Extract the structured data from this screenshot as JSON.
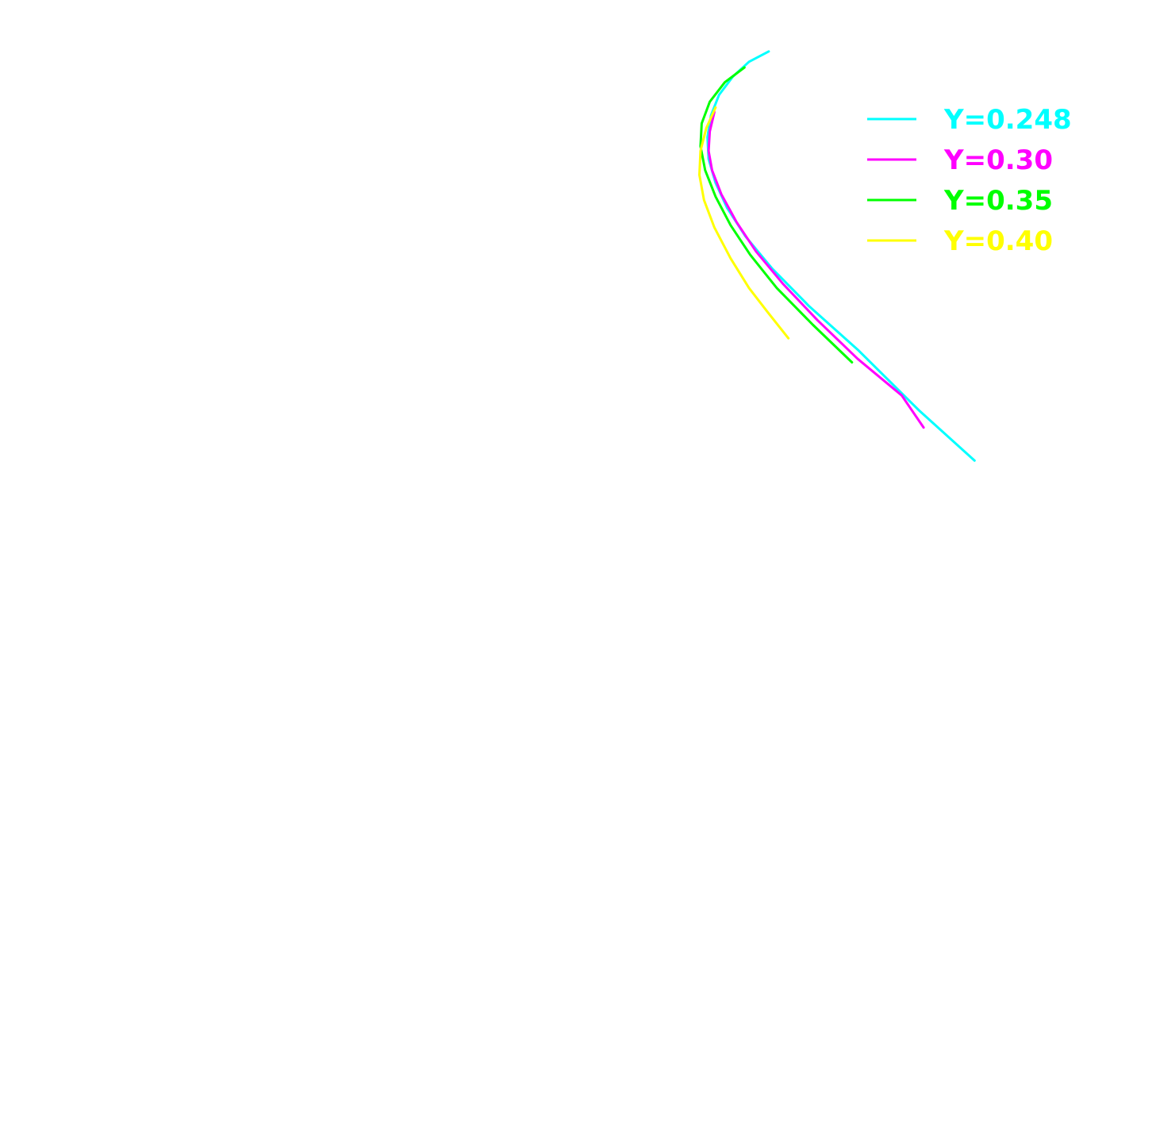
{
  "chart_data": {
    "type": "line",
    "title": "",
    "xlabel": "",
    "ylabel": "",
    "grid": false,
    "axes_visible": false,
    "xlim": [
      0,
      1
    ],
    "ylim": [
      0,
      1
    ],
    "legend": {
      "placement": "top-right",
      "entries": [
        "Y=0.248",
        "Y=0.30",
        "Y=0.35",
        "Y=0.40"
      ]
    },
    "series": [
      {
        "name": "Y=0.248",
        "color": "#00ffff",
        "points": [
          [
            0.665,
            0.955
          ],
          [
            0.648,
            0.946
          ],
          [
            0.634,
            0.933
          ],
          [
            0.622,
            0.917
          ],
          [
            0.615,
            0.899
          ],
          [
            0.612,
            0.88
          ],
          [
            0.613,
            0.861
          ],
          [
            0.619,
            0.84
          ],
          [
            0.629,
            0.818
          ],
          [
            0.645,
            0.793
          ],
          [
            0.668,
            0.765
          ],
          [
            0.7,
            0.732
          ],
          [
            0.742,
            0.694
          ],
          [
            0.795,
            0.641
          ],
          [
            0.843,
            0.597
          ]
        ]
      },
      {
        "name": "Y=0.30",
        "color": "#ff00ff",
        "points": [
          [
            0.618,
            0.902
          ],
          [
            0.614,
            0.885
          ],
          [
            0.613,
            0.868
          ],
          [
            0.616,
            0.851
          ],
          [
            0.624,
            0.83
          ],
          [
            0.637,
            0.806
          ],
          [
            0.654,
            0.78
          ],
          [
            0.677,
            0.752
          ],
          [
            0.707,
            0.72
          ],
          [
            0.742,
            0.686
          ],
          [
            0.78,
            0.654
          ],
          [
            0.799,
            0.626
          ]
        ]
      },
      {
        "name": "Y=0.35",
        "color": "#00ff00",
        "points": [
          [
            0.644,
            0.941
          ],
          [
            0.627,
            0.928
          ],
          [
            0.614,
            0.911
          ],
          [
            0.607,
            0.892
          ],
          [
            0.606,
            0.872
          ],
          [
            0.61,
            0.851
          ],
          [
            0.619,
            0.828
          ],
          [
            0.632,
            0.803
          ],
          [
            0.649,
            0.777
          ],
          [
            0.672,
            0.748
          ],
          [
            0.703,
            0.716
          ],
          [
            0.737,
            0.683
          ]
        ]
      },
      {
        "name": "Y=0.40",
        "color": "#ffff00",
        "points": [
          [
            0.619,
            0.906
          ],
          [
            0.611,
            0.888
          ],
          [
            0.606,
            0.868
          ],
          [
            0.605,
            0.847
          ],
          [
            0.609,
            0.825
          ],
          [
            0.618,
            0.801
          ],
          [
            0.632,
            0.774
          ],
          [
            0.648,
            0.748
          ],
          [
            0.664,
            0.727
          ],
          [
            0.682,
            0.704
          ]
        ]
      }
    ]
  }
}
